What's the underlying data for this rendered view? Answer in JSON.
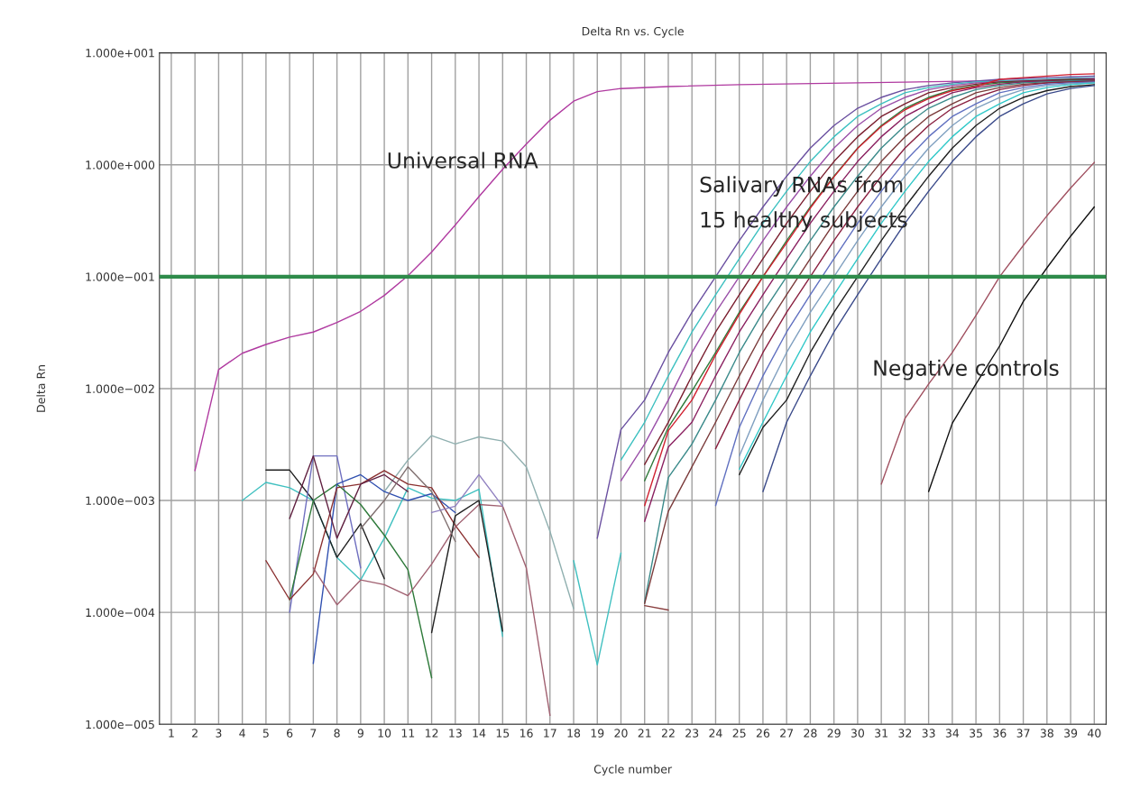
{
  "chart_data": {
    "type": "line",
    "title": "Delta Rn vs. Cycle",
    "xlabel": "Cycle number",
    "ylabel": "Delta Rn",
    "log": "y",
    "grid": true,
    "xlim": [
      0.5,
      40.5
    ],
    "xticks": [
      1,
      2,
      3,
      4,
      5,
      6,
      7,
      8,
      9,
      10,
      11,
      12,
      13,
      14,
      15,
      16,
      17,
      18,
      19,
      20,
      21,
      22,
      23,
      24,
      25,
      26,
      27,
      28,
      29,
      30,
      31,
      32,
      33,
      34,
      35,
      36,
      37,
      38,
      39,
      40
    ],
    "ylim": [
      1e-05,
      10
    ],
    "yticks": [
      {
        "value": 1e-05,
        "label": "1.000e−005"
      },
      {
        "value": 0.0001,
        "label": "1.000e−004"
      },
      {
        "value": 0.001,
        "label": "1.000e−003"
      },
      {
        "value": 0.01,
        "label": "1.000e−002"
      },
      {
        "value": 0.1,
        "label": "1.000e−001"
      },
      {
        "value": 1,
        "label": "1.000e+000"
      },
      {
        "value": 10,
        "label": "1.000e+001"
      }
    ],
    "ref_lines": [
      {
        "axis": "y",
        "value": 0.1,
        "color": "#2e8b4a"
      }
    ],
    "annotations": [
      "Universal RNA",
      "Salivary RNAs from\n15 healthy subjects",
      "Negative controls"
    ],
    "series": [
      {
        "color": "#b03aa0",
        "x": [
          2,
          3,
          4,
          5,
          6,
          7,
          8,
          9,
          10,
          11,
          12,
          13,
          14,
          15,
          16,
          17,
          18,
          19,
          20,
          22,
          25,
          30,
          35,
          40
        ],
        "values": [
          0.00185,
          0.0148,
          0.0207,
          0.0248,
          0.0288,
          0.032,
          0.039,
          0.049,
          0.068,
          0.102,
          0.166,
          0.29,
          0.52,
          0.91,
          1.53,
          2.5,
          3.7,
          4.5,
          4.8,
          5.0,
          5.2,
          5.4,
          5.6,
          5.8
        ]
      },
      {
        "color": "#6a4fa0",
        "x": [
          19,
          20,
          21,
          22,
          23,
          24,
          25,
          26,
          27,
          28,
          29,
          30,
          31,
          32,
          33,
          34,
          35,
          36,
          37,
          38,
          39,
          40
        ],
        "values": [
          0.00046,
          0.0043,
          0.0079,
          0.021,
          0.048,
          0.1,
          0.21,
          0.42,
          0.79,
          1.41,
          2.24,
          3.2,
          4.0,
          4.7,
          5.1,
          5.4,
          5.6,
          5.8,
          5.9,
          6.0,
          6.1,
          6.2
        ]
      },
      {
        "color": "#3cc0c0",
        "x": [
          20,
          21,
          22,
          23,
          24,
          25,
          26,
          27,
          28,
          29,
          30,
          31,
          32,
          33,
          34,
          35,
          36,
          37,
          38,
          39,
          40
        ],
        "values": [
          0.0023,
          0.005,
          0.013,
          0.032,
          0.069,
          0.145,
          0.3,
          0.58,
          1.07,
          1.78,
          2.7,
          3.5,
          4.4,
          4.9,
          5.25,
          5.5,
          5.6,
          5.7,
          5.8,
          5.9,
          6.0
        ]
      },
      {
        "color": "#9a4fa8",
        "x": [
          20,
          21,
          22,
          23,
          24,
          25,
          26,
          27,
          28,
          29,
          30,
          31,
          32,
          33,
          34,
          35,
          36,
          37,
          38,
          39,
          40
        ],
        "values": [
          0.0015,
          0.0032,
          0.0079,
          0.021,
          0.048,
          0.1,
          0.21,
          0.42,
          0.79,
          1.41,
          2.24,
          3.2,
          4.0,
          4.7,
          5.1,
          5.4,
          5.5,
          5.6,
          5.7,
          5.8,
          5.9
        ]
      },
      {
        "color": "#7a1e2e",
        "x": [
          21,
          22,
          23,
          24,
          25,
          26,
          27,
          28,
          29,
          30,
          31,
          32,
          33,
          34,
          35,
          36,
          37,
          38,
          39,
          40
        ],
        "values": [
          0.0021,
          0.005,
          0.013,
          0.032,
          0.069,
          0.145,
          0.3,
          0.58,
          1.07,
          1.78,
          2.7,
          3.5,
          4.4,
          4.9,
          5.25,
          5.5,
          5.6,
          5.7,
          5.8,
          5.8
        ]
      },
      {
        "color": "#2e7a3a",
        "x": [
          21,
          22,
          23,
          24,
          25,
          26,
          27,
          28,
          29,
          30,
          31,
          32,
          33,
          34,
          35,
          36,
          37,
          38,
          39,
          40
        ],
        "values": [
          0.0015,
          0.0045,
          0.0095,
          0.021,
          0.048,
          0.1,
          0.21,
          0.42,
          0.79,
          1.41,
          2.24,
          3.2,
          4.0,
          4.7,
          5.1,
          5.4,
          5.5,
          5.6,
          5.7,
          5.7
        ]
      },
      {
        "color": "#d02030",
        "x": [
          21,
          22,
          23,
          24,
          25,
          26,
          27,
          28,
          29,
          30,
          31,
          32,
          33,
          34,
          35,
          36,
          37,
          38,
          39,
          40
        ],
        "values": [
          0.0009,
          0.0042,
          0.0079,
          0.02,
          0.046,
          0.1,
          0.2,
          0.41,
          0.78,
          1.4,
          2.2,
          3.1,
          3.9,
          4.6,
          5.0,
          5.8,
          6.0,
          6.2,
          6.4,
          6.5
        ]
      },
      {
        "color": "#8a2060",
        "x": [
          21,
          22,
          23,
          24,
          25,
          26,
          27,
          28,
          29,
          30,
          31,
          32,
          33,
          34,
          35,
          36,
          37,
          38,
          39,
          40
        ],
        "values": [
          0.00065,
          0.003,
          0.005,
          0.013,
          0.032,
          0.069,
          0.145,
          0.3,
          0.58,
          1.07,
          1.78,
          2.7,
          3.5,
          4.4,
          4.9,
          5.25,
          5.5,
          5.6,
          5.6,
          5.7
        ]
      },
      {
        "color": "#3a8a8a",
        "x": [
          21,
          22,
          23,
          24,
          25,
          26,
          27,
          28,
          29,
          30,
          31,
          32,
          33,
          34,
          35,
          36,
          37,
          38,
          39,
          40
        ],
        "values": [
          0.000123,
          0.0016,
          0.0032,
          0.0079,
          0.021,
          0.048,
          0.1,
          0.21,
          0.42,
          0.79,
          1.41,
          2.24,
          3.2,
          4.0,
          4.7,
          5.1,
          5.4,
          5.5,
          5.6,
          5.6
        ]
      },
      {
        "color": "#8a4040",
        "x": [
          21,
          22
        ],
        "values": [
          0.000115,
          0.000105
        ]
      },
      {
        "color": "#7a3a3a",
        "x": [
          21,
          22,
          23,
          24,
          25,
          26,
          27,
          28,
          29,
          30,
          31,
          32,
          33,
          34,
          35,
          36,
          37,
          38,
          39,
          40
        ],
        "values": [
          0.00012,
          0.0008,
          0.002,
          0.005,
          0.013,
          0.032,
          0.069,
          0.145,
          0.3,
          0.58,
          1.07,
          1.78,
          2.7,
          3.5,
          4.4,
          4.9,
          5.25,
          5.4,
          5.5,
          5.5
        ]
      },
      {
        "color": "#8a2040",
        "x": [
          24,
          25,
          26,
          27,
          28,
          29,
          30,
          31,
          32,
          33,
          34,
          35,
          36,
          37,
          38,
          39,
          40
        ],
        "values": [
          0.0029,
          0.0079,
          0.021,
          0.048,
          0.1,
          0.21,
          0.42,
          0.79,
          1.41,
          2.24,
          3.2,
          4.0,
          4.7,
          5.1,
          5.4,
          5.5,
          5.6
        ]
      },
      {
        "color": "#6070c0",
        "x": [
          24,
          25,
          26,
          27,
          28,
          29,
          30,
          31,
          32,
          33,
          34,
          35,
          36,
          37,
          38,
          39,
          40
        ],
        "values": [
          0.0009,
          0.0045,
          0.013,
          0.032,
          0.069,
          0.145,
          0.3,
          0.58,
          1.07,
          1.78,
          2.7,
          3.5,
          4.4,
          4.9,
          5.25,
          5.4,
          5.5
        ]
      },
      {
        "color": "#80a0c0",
        "x": [
          25,
          26,
          27,
          28,
          29,
          30,
          31,
          32,
          33,
          34,
          35,
          36,
          37,
          38,
          39,
          40
        ],
        "values": [
          0.0025,
          0.0079,
          0.021,
          0.048,
          0.1,
          0.21,
          0.42,
          0.79,
          1.41,
          2.24,
          3.2,
          4.0,
          4.7,
          5.1,
          5.3,
          5.4
        ]
      },
      {
        "color": "#30c8c8",
        "x": [
          25,
          26,
          27,
          28,
          29,
          30,
          31,
          32,
          33,
          34,
          35,
          36,
          37,
          38,
          39,
          40
        ],
        "values": [
          0.0019,
          0.005,
          0.013,
          0.032,
          0.069,
          0.145,
          0.3,
          0.58,
          1.07,
          1.78,
          2.7,
          3.5,
          4.4,
          4.9,
          5.2,
          5.4
        ]
      },
      {
        "color": "#202020",
        "x": [
          25,
          26,
          27,
          28,
          29,
          30,
          31,
          32,
          33,
          34,
          35,
          36,
          37,
          38,
          39,
          40
        ],
        "values": [
          0.0017,
          0.0045,
          0.0079,
          0.021,
          0.048,
          0.1,
          0.21,
          0.42,
          0.79,
          1.41,
          2.24,
          3.2,
          4.0,
          4.6,
          5.0,
          5.2
        ]
      },
      {
        "color": "#3a4a8a",
        "x": [
          26,
          27,
          28,
          29,
          30,
          31,
          32,
          33,
          34,
          35,
          36,
          37,
          38,
          39,
          40
        ],
        "values": [
          0.0012,
          0.005,
          0.013,
          0.032,
          0.069,
          0.145,
          0.3,
          0.58,
          1.07,
          1.78,
          2.7,
          3.5,
          4.3,
          4.8,
          5.1
        ]
      },
      {
        "color": "#a05060",
        "x": [
          31,
          32,
          33,
          34,
          35,
          36,
          37,
          38,
          39,
          40
        ],
        "values": [
          0.0014,
          0.0054,
          0.011,
          0.021,
          0.045,
          0.1,
          0.19,
          0.35,
          0.62,
          1.05
        ]
      },
      {
        "color": "#101010",
        "x": [
          33,
          34,
          35,
          36,
          37,
          38,
          39,
          40
        ],
        "values": [
          0.0012,
          0.0049,
          0.011,
          0.024,
          0.06,
          0.12,
          0.23,
          0.42
        ]
      },
      {
        "color": "#40c0c0",
        "x": [
          18,
          19,
          20
        ],
        "values": [
          0.00029,
          3.4e-05,
          0.00034
        ]
      },
      {
        "color": "#90b0b0",
        "x": [
          10,
          11,
          12,
          13,
          14,
          15,
          16,
          17,
          18
        ],
        "values": [
          0.0012,
          0.0023,
          0.0038,
          0.0032,
          0.0037,
          0.0034,
          0.002,
          0.00053,
          0.000108
        ]
      },
      {
        "color": "#40c0c0",
        "x": [
          4,
          5,
          6,
          7,
          8,
          9,
          10,
          11,
          12,
          13,
          14,
          15
        ],
        "values": [
          0.001,
          0.00145,
          0.0013,
          0.001,
          0.00031,
          0.000195,
          0.00046,
          0.0013,
          0.00105,
          0.001,
          0.00126,
          6.1e-05
        ]
      },
      {
        "color": "#202020",
        "x": [
          5,
          6,
          7,
          8,
          9,
          10
        ],
        "values": [
          0.00187,
          0.00187,
          0.001,
          0.00031,
          0.00062,
          0.0002
        ]
      },
      {
        "color": "#7070c0",
        "x": [
          6,
          7,
          8,
          9
        ],
        "values": [
          0.0001,
          0.0025,
          0.0025,
          0.00025
        ]
      },
      {
        "color": "#2e7a3a",
        "x": [
          6,
          7,
          8,
          9,
          10,
          11,
          12
        ],
        "values": [
          0.00013,
          0.001,
          0.0014,
          0.00092,
          0.00049,
          0.00024,
          2.6e-05
        ]
      },
      {
        "color": "#3050b0",
        "x": [
          7,
          8,
          9,
          10,
          11,
          12,
          13
        ],
        "values": [
          3.5e-05,
          0.0014,
          0.0017,
          0.0012,
          0.001,
          0.00115,
          0.00078
        ]
      },
      {
        "color": "#8a3030",
        "x": [
          5,
          6,
          7,
          8,
          9,
          10,
          11,
          12,
          13,
          14
        ],
        "values": [
          0.00029,
          0.00013,
          0.00022,
          0.0013,
          0.0014,
          0.00185,
          0.0014,
          0.0013,
          0.0006,
          0.00031
        ]
      },
      {
        "color": "#a06070",
        "x": [
          7,
          8,
          9,
          10,
          11,
          12,
          13,
          14,
          15,
          16,
          17
        ],
        "values": [
          0.00025,
          0.000117,
          0.000195,
          0.000177,
          0.000141,
          0.00027,
          0.00058,
          0.00092,
          0.00089,
          0.00025,
          1.2e-05
        ]
      },
      {
        "color": "#202020",
        "x": [
          12,
          13,
          14,
          15
        ],
        "values": [
          6.6e-05,
          0.00073,
          0.001,
          6.8e-05
        ]
      },
      {
        "color": "#602040",
        "x": [
          6,
          7,
          8,
          9,
          10,
          11
        ],
        "values": [
          0.00069,
          0.0025,
          0.00046,
          0.0014,
          0.0017,
          0.0012
        ]
      },
      {
        "color": "#807070",
        "x": [
          9,
          10,
          11,
          12,
          13
        ],
        "values": [
          0.00056,
          0.001,
          0.002,
          0.0012,
          0.00043
        ]
      },
      {
        "color": "#9080c0",
        "x": [
          12,
          13,
          14,
          15
        ],
        "values": [
          0.00078,
          0.00089,
          0.0017,
          0.00089
        ]
      }
    ]
  }
}
